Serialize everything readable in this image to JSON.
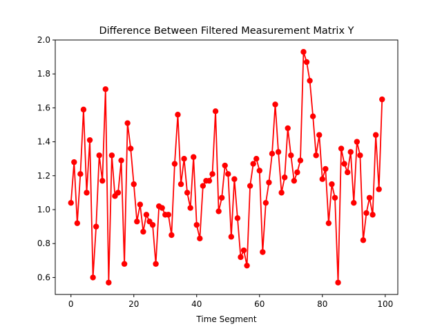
{
  "chart_data": {
    "type": "line",
    "title": "Difference Between Filtered Measurement Matrix Y",
    "xlabel": "Time Segment",
    "ylabel": "",
    "xlim": [
      -5,
      104
    ],
    "ylim": [
      0.5,
      2.0
    ],
    "xticks": [
      0,
      20,
      40,
      60,
      80,
      100
    ],
    "yticks": [
      0.6,
      0.8,
      1.0,
      1.2,
      1.4,
      1.6,
      1.8,
      2.0
    ],
    "xtick_labels": [
      "0",
      "20",
      "40",
      "60",
      "80",
      "100"
    ],
    "ytick_labels": [
      "0.6",
      "0.8",
      "1.0",
      "1.2",
      "1.4",
      "1.6",
      "1.8",
      "2.0"
    ],
    "grid": false,
    "series": [
      {
        "color": "#ff0000",
        "marker": "circle",
        "x": [
          0,
          1,
          2,
          3,
          4,
          5,
          6,
          7,
          8,
          9,
          10,
          11,
          12,
          13,
          14,
          15,
          16,
          17,
          18,
          19,
          20,
          21,
          22,
          23,
          24,
          25,
          26,
          27,
          28,
          29,
          30,
          31,
          32,
          33,
          34,
          35,
          36,
          37,
          38,
          39,
          40,
          41,
          42,
          43,
          44,
          45,
          46,
          47,
          48,
          49,
          50,
          51,
          52,
          53,
          54,
          55,
          56,
          57,
          58,
          59,
          60,
          61,
          62,
          63,
          64,
          65,
          66,
          67,
          68,
          69,
          70,
          71,
          72,
          73,
          74,
          75,
          76,
          77,
          78,
          79,
          80,
          81,
          82,
          83,
          84,
          85,
          86,
          87,
          88,
          89,
          90,
          91,
          92,
          93,
          94,
          95,
          96,
          97,
          98,
          99
        ],
        "y": [
          1.04,
          1.28,
          0.92,
          1.21,
          1.59,
          1.1,
          1.41,
          0.6,
          0.9,
          1.32,
          1.17,
          1.71,
          0.57,
          1.32,
          1.08,
          1.1,
          1.29,
          0.68,
          1.51,
          1.36,
          1.15,
          0.93,
          1.03,
          0.87,
          0.97,
          0.93,
          0.91,
          0.68,
          1.02,
          1.01,
          0.97,
          0.97,
          0.85,
          1.27,
          1.56,
          1.15,
          1.3,
          1.1,
          1.01,
          1.31,
          0.91,
          0.83,
          1.14,
          1.17,
          1.17,
          1.21,
          1.58,
          0.99,
          1.07,
          1.26,
          1.21,
          0.84,
          1.18,
          0.95,
          0.72,
          0.76,
          0.67,
          1.14,
          1.27,
          1.3,
          1.23,
          0.75,
          1.04,
          1.16,
          1.33,
          1.62,
          1.34,
          1.1,
          1.19,
          1.48,
          1.32,
          1.17,
          1.22,
          1.29,
          1.93,
          1.87,
          1.76,
          1.55,
          1.32,
          1.44,
          1.18,
          1.24,
          0.92,
          1.15,
          1.07,
          0.57,
          1.36,
          1.27,
          1.22,
          1.34,
          1.04,
          1.4,
          1.32,
          0.82,
          0.98,
          1.07,
          0.97,
          1.44,
          1.12,
          1.65
        ]
      }
    ]
  }
}
